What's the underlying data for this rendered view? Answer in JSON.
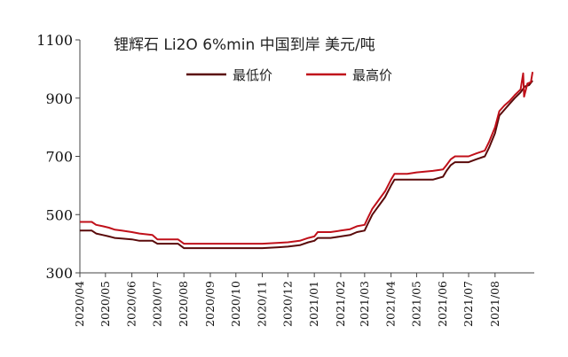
{
  "chart_data": {
    "type": "line",
    "title": "锂辉石 Li2O 6%min 中国到岸 美元/吨",
    "xlabel": "",
    "ylabel": "",
    "ylim": [
      300,
      1100
    ],
    "yticks": [
      300,
      500,
      700,
      900,
      1100
    ],
    "x_tick_labels": [
      "2020/04",
      "2020/05",
      "2020/06",
      "2020/07",
      "2020/08",
      "2020/09",
      "2020/10",
      "2020/11",
      "2020/12",
      "2021/01",
      "2021/02",
      "2021/03",
      "2021/04",
      "2021/05",
      "2021/06",
      "2021/07",
      "2021/08"
    ],
    "grid": false,
    "legend_position": "top-center",
    "series": [
      {
        "name": "最低价",
        "color": "#5a0a0a",
        "points": [
          [
            "2020/04/01",
            445
          ],
          [
            "2020/04/15",
            445
          ],
          [
            "2020/04/20",
            435
          ],
          [
            "2020/04/28",
            430
          ],
          [
            "2020/05/05",
            425
          ],
          [
            "2020/05/12",
            420
          ],
          [
            "2020/05/20",
            418
          ],
          [
            "2020/06/01",
            415
          ],
          [
            "2020/06/10",
            410
          ],
          [
            "2020/06/25",
            410
          ],
          [
            "2020/07/01",
            400
          ],
          [
            "2020/07/25",
            400
          ],
          [
            "2020/08/01",
            385
          ],
          [
            "2020/09/01",
            385
          ],
          [
            "2020/10/01",
            385
          ],
          [
            "2020/11/01",
            385
          ],
          [
            "2020/11/20",
            388
          ],
          [
            "2020/12/01",
            390
          ],
          [
            "2020/12/15",
            395
          ],
          [
            "2020/12/25",
            405
          ],
          [
            "2021/01/01",
            410
          ],
          [
            "2021/01/05",
            420
          ],
          [
            "2021/01/20",
            420
          ],
          [
            "2021/02/01",
            425
          ],
          [
            "2021/02/12",
            430
          ],
          [
            "2021/02/20",
            440
          ],
          [
            "2021/03/01",
            445
          ],
          [
            "2021/03/05",
            470
          ],
          [
            "2021/03/10",
            500
          ],
          [
            "2021/03/15",
            520
          ],
          [
            "2021/03/20",
            540
          ],
          [
            "2021/03/25",
            560
          ],
          [
            "2021/04/01",
            600
          ],
          [
            "2021/04/05",
            620
          ],
          [
            "2021/04/20",
            620
          ],
          [
            "2021/05/01",
            620
          ],
          [
            "2021/05/20",
            620
          ],
          [
            "2021/06/01",
            630
          ],
          [
            "2021/06/05",
            650
          ],
          [
            "2021/06/10",
            670
          ],
          [
            "2021/06/15",
            680
          ],
          [
            "2021/07/01",
            680
          ],
          [
            "2021/07/10",
            690
          ],
          [
            "2021/07/20",
            700
          ],
          [
            "2021/07/25",
            730
          ],
          [
            "2021/08/01",
            780
          ],
          [
            "2021/08/06",
            840
          ],
          [
            "2021/08/12",
            860
          ],
          [
            "2021/08/18",
            880
          ],
          [
            "2021/08/24",
            900
          ],
          [
            "2021/08/31",
            920
          ],
          [
            "2021/09/05",
            940
          ],
          [
            "2021/09/10",
            945
          ],
          [
            "2021/09/14",
            960
          ]
        ]
      },
      {
        "name": "最高价",
        "color": "#c0101a",
        "points": [
          [
            "2020/04/01",
            475
          ],
          [
            "2020/04/15",
            475
          ],
          [
            "2020/04/20",
            465
          ],
          [
            "2020/04/28",
            460
          ],
          [
            "2020/05/05",
            455
          ],
          [
            "2020/05/12",
            448
          ],
          [
            "2020/05/20",
            445
          ],
          [
            "2020/06/01",
            440
          ],
          [
            "2020/06/10",
            435
          ],
          [
            "2020/06/25",
            430
          ],
          [
            "2020/07/01",
            415
          ],
          [
            "2020/07/25",
            415
          ],
          [
            "2020/08/01",
            400
          ],
          [
            "2020/09/01",
            400
          ],
          [
            "2020/10/01",
            400
          ],
          [
            "2020/11/01",
            400
          ],
          [
            "2020/11/20",
            403
          ],
          [
            "2020/12/01",
            405
          ],
          [
            "2020/12/15",
            410
          ],
          [
            "2020/12/25",
            420
          ],
          [
            "2021/01/01",
            425
          ],
          [
            "2021/01/05",
            440
          ],
          [
            "2021/01/20",
            440
          ],
          [
            "2021/02/01",
            445
          ],
          [
            "2021/02/12",
            450
          ],
          [
            "2021/02/20",
            460
          ],
          [
            "2021/03/01",
            465
          ],
          [
            "2021/03/05",
            490
          ],
          [
            "2021/03/10",
            520
          ],
          [
            "2021/03/15",
            540
          ],
          [
            "2021/03/20",
            560
          ],
          [
            "2021/03/25",
            580
          ],
          [
            "2021/04/01",
            620
          ],
          [
            "2021/04/05",
            640
          ],
          [
            "2021/04/20",
            640
          ],
          [
            "2021/05/01",
            645
          ],
          [
            "2021/05/20",
            650
          ],
          [
            "2021/06/01",
            655
          ],
          [
            "2021/06/05",
            670
          ],
          [
            "2021/06/10",
            690
          ],
          [
            "2021/06/15",
            700
          ],
          [
            "2021/07/01",
            700
          ],
          [
            "2021/07/10",
            710
          ],
          [
            "2021/07/20",
            720
          ],
          [
            "2021/07/25",
            750
          ],
          [
            "2021/08/01",
            800
          ],
          [
            "2021/08/06",
            855
          ],
          [
            "2021/08/12",
            875
          ],
          [
            "2021/08/18",
            890
          ],
          [
            "2021/08/24",
            910
          ],
          [
            "2021/08/31",
            930
          ],
          [
            "2021/09/03",
            985
          ],
          [
            "2021/09/04",
            905
          ],
          [
            "2021/09/08",
            950
          ],
          [
            "2021/09/12",
            955
          ],
          [
            "2021/09/14",
            990
          ]
        ]
      }
    ]
  }
}
